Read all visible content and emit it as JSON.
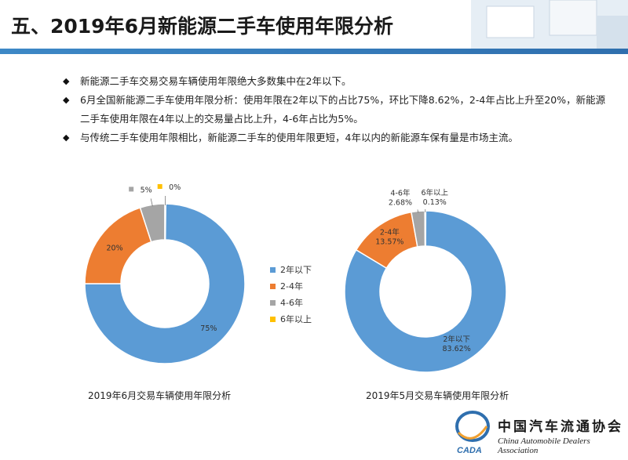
{
  "header": {
    "title": "五、2019年6月新能源二手车使用年限分析"
  },
  "bullets": [
    "新能源二手车交易交易车辆使用年限绝大多数集中在2年以下。",
    "6月全国新能源二手车使用年限分析：使用年限在2年以下的占比75%，环比下降8.62%，2-4年占比上升至20%，新能源二手车使用年限在4年以上的交易量占比上升，4-6年占比为5%。",
    "与传统二手车使用年限相比，新能源二手车的使用年限更短，4年以内的新能源车保有量是市场主流。"
  ],
  "colors": {
    "blue": "#5b9bd5",
    "orange": "#ed7d31",
    "gray": "#a5a5a5",
    "yellow": "#ffc000",
    "header_bar": "#3d88c6"
  },
  "legend": [
    {
      "label": "2年以下",
      "color": "#5b9bd5"
    },
    {
      "label": "2-4年",
      "color": "#ed7d31"
    },
    {
      "label": "4-6年",
      "color": "#a5a5a5"
    },
    {
      "label": "6年以上",
      "color": "#ffc000"
    }
  ],
  "chart_data": [
    {
      "type": "pie",
      "title": "2019年6月交易车辆使用年限分析",
      "categories": [
        "2年以下",
        "2-4年",
        "4-6年",
        "6年以上"
      ],
      "values": [
        75,
        20,
        5,
        0
      ],
      "labels": [
        "75%",
        "20%",
        "5%",
        "0%"
      ],
      "colors": [
        "#5b9bd5",
        "#ed7d31",
        "#a5a5a5",
        "#ffc000"
      ],
      "legend": "right"
    },
    {
      "type": "pie",
      "title": "2019年5月交易车辆使用年限分析",
      "categories": [
        "2年以下",
        "2-4年",
        "4-6年",
        "6年以上"
      ],
      "values": [
        83.62,
        13.57,
        2.68,
        0.13
      ],
      "labels": [
        "2年以下\n83.62%",
        "2-4年\n13.57%",
        "4-6年\n2.68%",
        "6年以上\n0.13%"
      ],
      "colors": [
        "#5b9bd5",
        "#ed7d31",
        "#a5a5a5",
        "#ffc000"
      ],
      "legend": "none"
    }
  ],
  "logo": {
    "cn": "中国汽车流通协会",
    "en": "China Automobile Dealers Association",
    "mark": "CADA"
  }
}
